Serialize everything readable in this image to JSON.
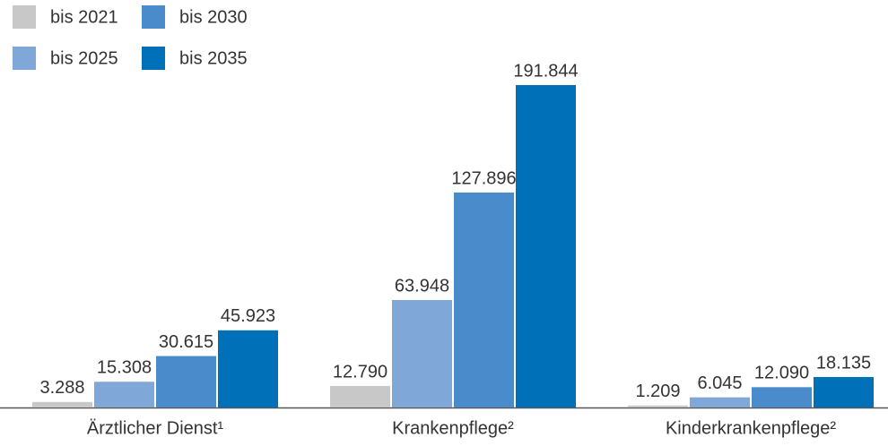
{
  "chart_data": {
    "type": "bar",
    "categories": [
      "Ärztlicher Dienst¹",
      "Krankenpflege²",
      "Kinderkrankenpflege²"
    ],
    "series": [
      {
        "name": "bis 2021",
        "color": "#c8c8c8",
        "values": [
          3288,
          12790,
          1209
        ],
        "value_labels": [
          "3.288",
          "12.790",
          "1.209"
        ]
      },
      {
        "name": "bis 2025",
        "color": "#7fa7d8",
        "values": [
          15308,
          63948,
          6045
        ],
        "value_labels": [
          "15.308",
          "63.948",
          "6.045"
        ]
      },
      {
        "name": "bis 2030",
        "color": "#4a8ccb",
        "values": [
          30615,
          127896,
          12090
        ],
        "value_labels": [
          "30.615",
          "127.896",
          "12.090"
        ]
      },
      {
        "name": "bis 2035",
        "color": "#0070b8",
        "values": [
          45923,
          191844,
          18135
        ],
        "value_labels": [
          "45.923",
          "191.844",
          "18.135"
        ]
      }
    ]
  }
}
